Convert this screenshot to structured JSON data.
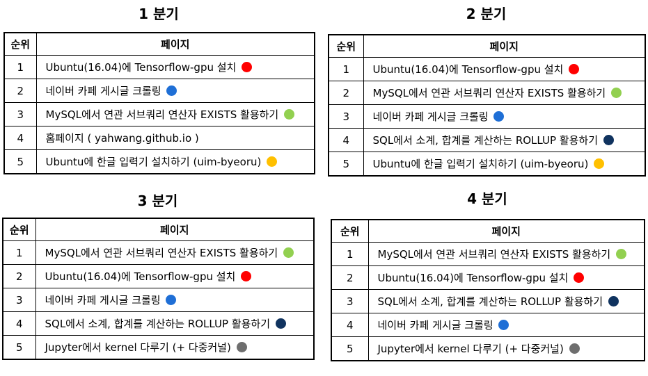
{
  "colors": {
    "red": "#ff0000",
    "blue": "#1f6fd6",
    "green": "#92d050",
    "navy": "#10335f",
    "yellow": "#ffc000",
    "gray": "#6e6e6e"
  },
  "header": {
    "rank": "순위",
    "page": "페이지"
  },
  "quarters": [
    {
      "title": "1 분기",
      "rows": [
        {
          "rank": "1",
          "page": "Ubuntu(16.04)에 Tensorflow-gpu 설치",
          "dot": "red"
        },
        {
          "rank": "2",
          "page": "네이버 카페 게시글 크롤링",
          "dot": "blue"
        },
        {
          "rank": "3",
          "page": "MySQL에서 연관 서브쿼리 연산자 EXISTS 활용하기",
          "dot": "green"
        },
        {
          "rank": "4",
          "page": "홈페이지 ( yahwang.github.io )",
          "dot": ""
        },
        {
          "rank": "5",
          "page": "Ubuntu에 한글 입력기 설치하기 (uim-byeoru)",
          "dot": "yellow"
        }
      ]
    },
    {
      "title": "2 분기",
      "rows": [
        {
          "rank": "1",
          "page": "Ubuntu(16.04)에 Tensorflow-gpu 설치",
          "dot": "red"
        },
        {
          "rank": "2",
          "page": "MySQL에서 연관 서브쿼리 연산자 EXISTS 활용하기",
          "dot": "green"
        },
        {
          "rank": "3",
          "page": "네이버 카페 게시글 크롤링",
          "dot": "blue"
        },
        {
          "rank": "4",
          "page": "SQL에서 소계, 합계를 계산하는 ROLLUP 활용하기",
          "dot": "navy"
        },
        {
          "rank": "5",
          "page": "Ubuntu에 한글 입력기 설치하기 (uim-byeoru)",
          "dot": "yellow"
        }
      ]
    },
    {
      "title": "3 분기",
      "rows": [
        {
          "rank": "1",
          "page": "MySQL에서 연관 서브쿼리 연산자 EXISTS 활용하기",
          "dot": "green"
        },
        {
          "rank": "2",
          "page": "Ubuntu(16.04)에 Tensorflow-gpu 설치",
          "dot": "red"
        },
        {
          "rank": "3",
          "page": "네이버 카페 게시글 크롤링",
          "dot": "blue"
        },
        {
          "rank": "4",
          "page": "SQL에서 소계, 합계를 계산하는 ROLLUP 활용하기",
          "dot": "navy"
        },
        {
          "rank": "5",
          "page": "Jupyter에서 kernel 다루기 (+ 다중커널)",
          "dot": "gray"
        }
      ]
    },
    {
      "title": "4 분기",
      "rows": [
        {
          "rank": "1",
          "page": "MySQL에서 연관 서브쿼리 연산자 EXISTS 활용하기",
          "dot": "green"
        },
        {
          "rank": "2",
          "page": "Ubuntu(16.04)에 Tensorflow-gpu 설치",
          "dot": "red"
        },
        {
          "rank": "3",
          "page": "SQL에서 소계, 합계를 계산하는 ROLLUP 활용하기",
          "dot": "navy"
        },
        {
          "rank": "4",
          "page": "네이버 카페 게시글 크롤링",
          "dot": "blue"
        },
        {
          "rank": "5",
          "page": "Jupyter에서 kernel 다루기 (+ 다중커널)",
          "dot": "gray"
        }
      ]
    }
  ]
}
